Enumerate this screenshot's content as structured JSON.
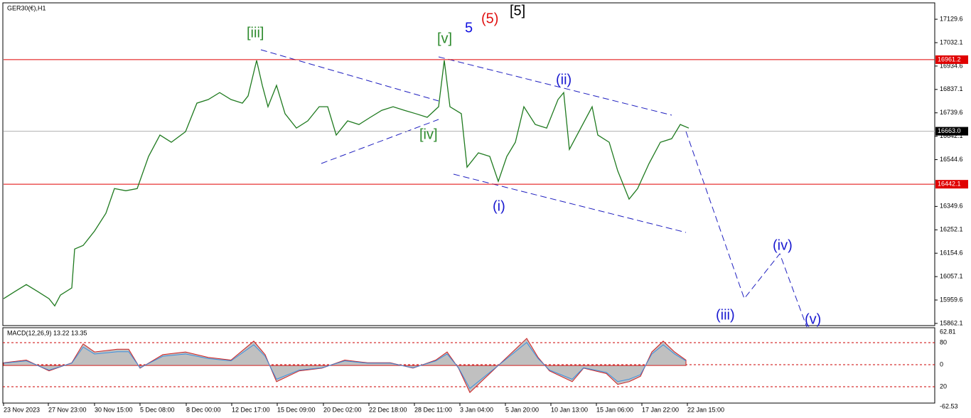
{
  "chart_data": {
    "type": "line",
    "title": "GER30(€),H1",
    "color": "#1f7a1f",
    "x": [
      0,
      16,
      32,
      48,
      64,
      72,
      80,
      96,
      100,
      112,
      128,
      144,
      156,
      172,
      188,
      204,
      220,
      236,
      256,
      272,
      288,
      304,
      320,
      336,
      344,
      356,
      364,
      372,
      384,
      396,
      412,
      428,
      444,
      456,
      468,
      484,
      500,
      516,
      532,
      548,
      564,
      580,
      596,
      612,
      620,
      628,
      644,
      652,
      668,
      684,
      696,
      708,
      720,
      732,
      748,
      764,
      780,
      788,
      796,
      812,
      828,
      836,
      852,
      864,
      880,
      892,
      908,
      924,
      940,
      952,
      964
    ],
    "values": [
      15965,
      15995,
      16024,
      15995,
      15965,
      15935,
      15980,
      16010,
      16172,
      16187,
      16247,
      16321,
      16424,
      16415,
      16424,
      16558,
      16647,
      16617,
      16661,
      16780,
      16795,
      16824,
      16795,
      16780,
      16810,
      16958,
      16854,
      16765,
      16854,
      16736,
      16676,
      16706,
      16765,
      16765,
      16647,
      16706,
      16691,
      16721,
      16750,
      16765,
      16750,
      16736,
      16721,
      16765,
      16958,
      16765,
      16736,
      16513,
      16573,
      16558,
      16454,
      16558,
      16617,
      16765,
      16691,
      16676,
      16795,
      16824,
      16587,
      16676,
      16765,
      16647,
      16617,
      16498,
      16380,
      16424,
      16528,
      16617,
      16632,
      16691,
      16676
    ],
    "xlim": [
      0,
      1310
    ],
    "ylim": [
      15853,
      17195
    ],
    "xticks": [
      {
        "value": 0,
        "label": "23 Nov 2023"
      },
      {
        "value": 63,
        "label": "27 Nov 23:00"
      },
      {
        "value": 128,
        "label": "30 Nov 15:00"
      },
      {
        "value": 192,
        "label": "5 Dec 08:00"
      },
      {
        "value": 257,
        "label": "8 Dec 00:00"
      },
      {
        "value": 321,
        "label": "12 Dec 17:00"
      },
      {
        "value": 385,
        "label": "15 Dec 09:00"
      },
      {
        "value": 450,
        "label": "20 Dec 02:00"
      },
      {
        "value": 514,
        "label": "22 Dec 18:00"
      },
      {
        "value": 578,
        "label": "28 Dec 11:00"
      },
      {
        "value": 642,
        "label": "3 Jan 04:00"
      },
      {
        "value": 706,
        "label": "5 Jan 20:00"
      },
      {
        "value": 770,
        "label": "10 Jan 13:00"
      },
      {
        "value": 834,
        "label": "15 Jan 06:00"
      },
      {
        "value": 898,
        "label": "17 Jan 22:00"
      },
      {
        "value": 962,
        "label": "22 Jan 15:00"
      }
    ],
    "yticks": [
      17129.6,
      17032.1,
      16934.6,
      16837.1,
      16739.6,
      16642.1,
      16544.6,
      16349.6,
      16252.1,
      16154.6,
      16057.1,
      15959.6,
      15862.1
    ],
    "hlines": [
      {
        "value": 16961.2,
        "color": "#e00000"
      },
      {
        "value": 16663,
        "label": "16663.0",
        "color": "#b0b0b0"
      },
      {
        "value": 16442.1,
        "color": "#e00000"
      }
    ],
    "annotations": [
      {
        "text": "[iii]",
        "color": "#2e8b2e"
      },
      {
        "text": "[v]",
        "color": "#2e8b2e"
      },
      {
        "text": "[iv]",
        "color": "#2e8b2e"
      },
      {
        "text": "5",
        "color": "#1010e0"
      },
      {
        "text": "(5)",
        "color": "#e01010"
      },
      {
        "text": "[5]",
        "color": "#000000"
      },
      {
        "text": "(ii)",
        "color": "#1a1ad0"
      },
      {
        "text": "(i)",
        "color": "#1a1ad0"
      },
      {
        "text": "(iii)",
        "color": "#1a1ad0"
      },
      {
        "text": "(iv)",
        "color": "#1a1ad0"
      },
      {
        "text": "(v)",
        "color": "#1a1ad0"
      }
    ],
    "macd": {
      "title": "MACD(12,26,9) 13.22 13.35",
      "ylim": [
        -168,
        137
      ],
      "values": [
        10,
        20,
        -20,
        10,
        80,
        50,
        60,
        60,
        -10,
        40,
        50,
        30,
        20,
        90,
        40,
        -60,
        -20,
        -10,
        20,
        10,
        10,
        -10,
        20,
        50,
        -10,
        -100,
        -60,
        20,
        100,
        30,
        -20,
        -60,
        -10,
        -30,
        -70,
        -60,
        -40,
        50,
        90,
        50,
        20
      ],
      "x": [
        0,
        32,
        64,
        96,
        112,
        128,
        160,
        176,
        192,
        224,
        256,
        288,
        320,
        352,
        368,
        384,
        416,
        448,
        480,
        512,
        544,
        576,
        608,
        624,
        640,
        656,
        672,
        704,
        736,
        752,
        768,
        800,
        816,
        848,
        864,
        880,
        896,
        912,
        928,
        944,
        960
      ],
      "axis_labels": [
        "62.81",
        "80",
        "0",
        "20",
        "-62.53"
      ]
    }
  }
}
